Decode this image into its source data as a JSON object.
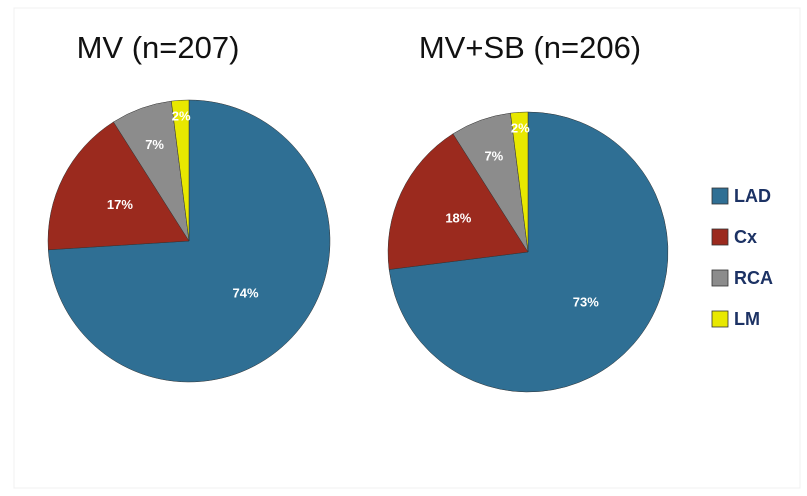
{
  "chart_data": [
    {
      "type": "pie",
      "title": "MV (n=207)",
      "categories": [
        "LAD",
        "Cx",
        "RCA",
        "LM"
      ],
      "colors": [
        "#2f6f94",
        "#9b2a1e",
        "#8c8c8c",
        "#e8e800"
      ],
      "values": [
        74,
        17,
        7,
        2
      ],
      "value_labels": [
        "74%",
        "17%",
        "7%",
        "2%"
      ]
    },
    {
      "type": "pie",
      "title": "MV+SB (n=206)",
      "colors": [
        "#2f6f94",
        "#9b2a1e",
        "#8c8c8c",
        "#e8e800"
      ],
      "values": [
        73,
        18,
        7,
        2
      ],
      "value_labels": [
        "73%",
        "18%",
        "7%",
        "2%"
      ]
    }
  ]
}
